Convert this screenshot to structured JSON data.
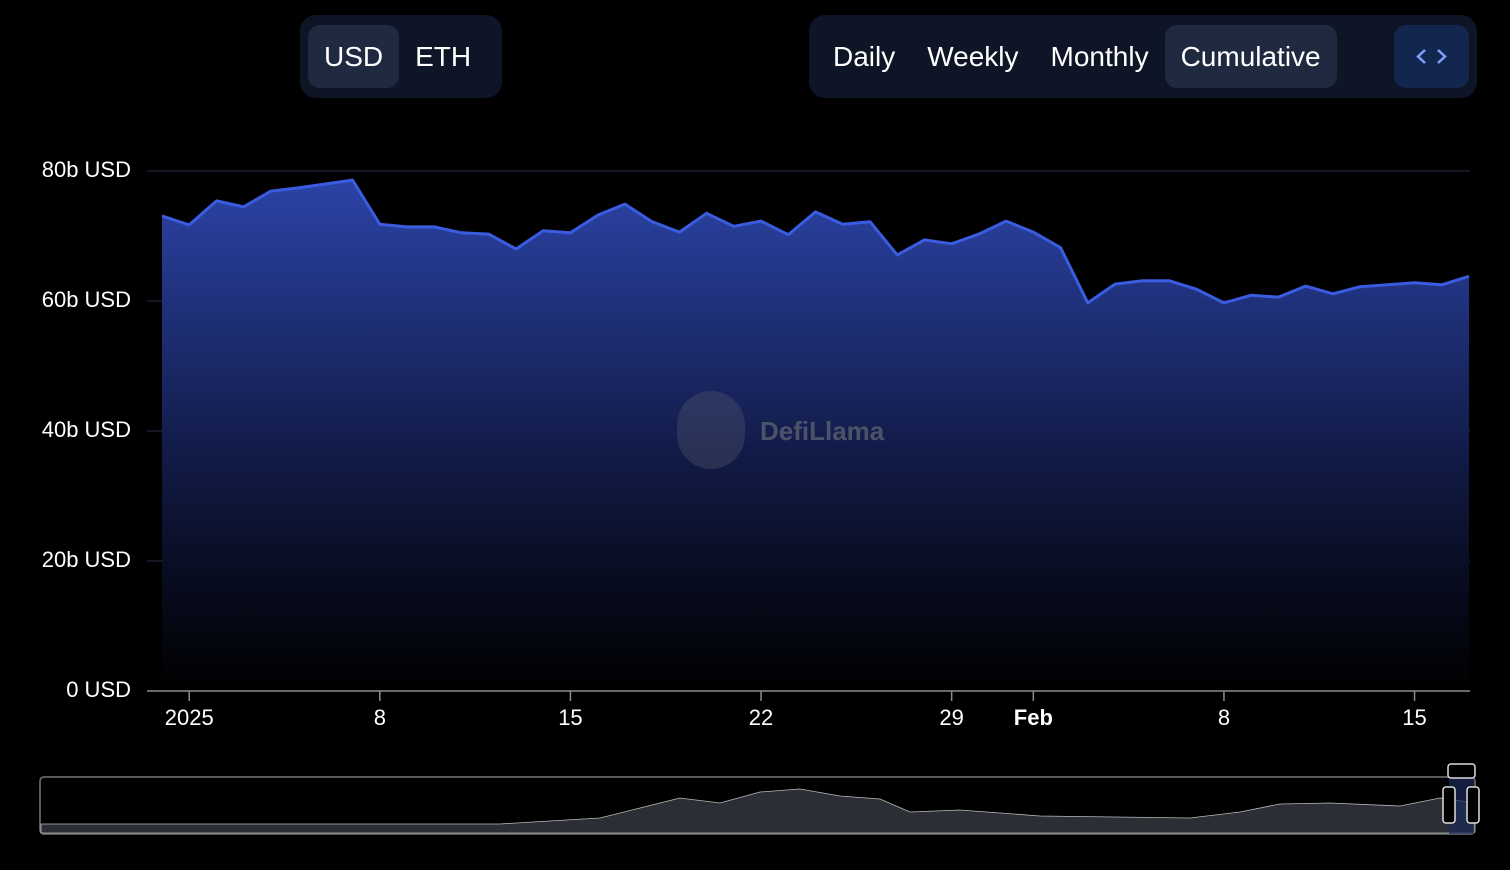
{
  "currency_toggle": {
    "options": [
      "USD",
      "ETH"
    ],
    "selected": 0
  },
  "period_toggle": {
    "options": [
      "Daily",
      "Weekly",
      "Monthly",
      "Cumulative"
    ],
    "selected": 3
  },
  "chart_data": {
    "type": "area",
    "watermark": "DefiLlama",
    "x": [
      "2024-12-31",
      "2025-01-01",
      "2025-01-02",
      "2025-01-03",
      "2025-01-04",
      "2025-01-05",
      "2025-01-06",
      "2025-01-07",
      "2025-01-08",
      "2025-01-09",
      "2025-01-10",
      "2025-01-11",
      "2025-01-12",
      "2025-01-13",
      "2025-01-14",
      "2025-01-15",
      "2025-01-16",
      "2025-01-17",
      "2025-01-18",
      "2025-01-19",
      "2025-01-20",
      "2025-01-21",
      "2025-01-22",
      "2025-01-23",
      "2025-01-24",
      "2025-01-25",
      "2025-01-26",
      "2025-01-27",
      "2025-01-28",
      "2025-01-29",
      "2025-01-30",
      "2025-01-31",
      "2025-02-01",
      "2025-02-02",
      "2025-02-03",
      "2025-02-04",
      "2025-02-05",
      "2025-02-06",
      "2025-02-07",
      "2025-02-08",
      "2025-02-09",
      "2025-02-10",
      "2025-02-11",
      "2025-02-12",
      "2025-02-13",
      "2025-02-14",
      "2025-02-15",
      "2025-02-16",
      "2025-02-17"
    ],
    "series": [
      {
        "color": "#3a5ce0",
        "values": [
          73.1,
          71.7,
          75.4,
          74.5,
          76.9,
          77.4,
          78.0,
          78.6,
          71.8,
          71.4,
          71.4,
          70.5,
          70.3,
          68.0,
          70.8,
          70.5,
          73.2,
          74.9,
          72.2,
          70.6,
          73.5,
          71.5,
          72.3,
          70.2,
          73.7,
          71.8,
          72.2,
          67.1,
          69.4,
          68.8,
          70.3,
          72.3,
          70.6,
          68.2,
          59.7,
          62.6,
          63.1,
          63.1,
          61.8,
          59.7,
          60.9,
          60.6,
          62.3,
          61.1,
          62.2,
          62.5,
          62.8,
          62.5,
          63.8
        ]
      }
    ],
    "xticks": [
      {
        "value": "2025-01-01",
        "label": "2025"
      },
      {
        "value": "2025-01-08",
        "label": "8"
      },
      {
        "value": "2025-01-15",
        "label": "15"
      },
      {
        "value": "2025-01-22",
        "label": "22"
      },
      {
        "value": "2025-01-29",
        "label": "29"
      },
      {
        "value": "2025-02-01",
        "label": "Feb"
      },
      {
        "value": "2025-02-08",
        "label": "8"
      },
      {
        "value": "2025-02-15",
        "label": "15"
      }
    ],
    "ylim": [
      0,
      80
    ],
    "yticks": [
      {
        "value": 0,
        "label": "0 USD"
      },
      {
        "value": 20,
        "label": "20b USD"
      },
      {
        "value": 40,
        "label": "40b USD"
      },
      {
        "value": 60,
        "label": "60b USD"
      },
      {
        "value": 80,
        "label": "80b USD"
      }
    ],
    "grid": true
  }
}
